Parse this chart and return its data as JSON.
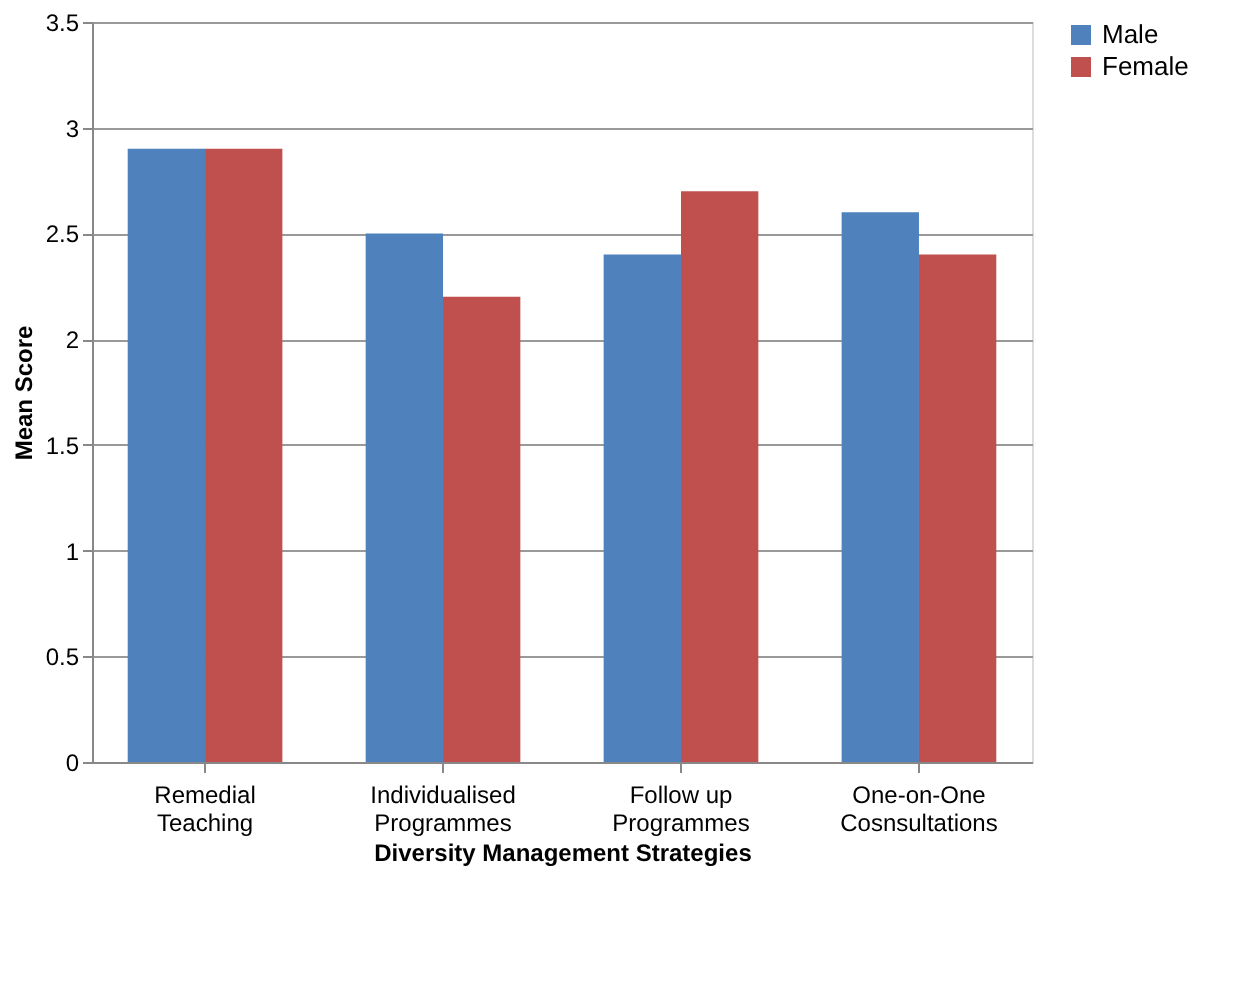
{
  "chart_data": {
    "type": "bar",
    "xlabel": "Diversity Management Strategies",
    "ylabel": "Mean Score",
    "categories": [
      "Remedial Teaching",
      "Individualised Programmes",
      "Follow up Programmes",
      "One-on-One Cosnsultations"
    ],
    "series": [
      {
        "name": "Male",
        "color": "#4f81bd",
        "values": [
          2.9,
          2.5,
          2.4,
          2.6
        ]
      },
      {
        "name": "Female",
        "color": "#c0504d",
        "values": [
          2.9,
          2.2,
          2.7,
          2.4
        ]
      }
    ],
    "ylim": [
      0,
      3.5
    ],
    "yticks": [
      0,
      0.5,
      1,
      1.5,
      2,
      2.5,
      3,
      3.5
    ],
    "grid": "y",
    "legend": "right"
  }
}
